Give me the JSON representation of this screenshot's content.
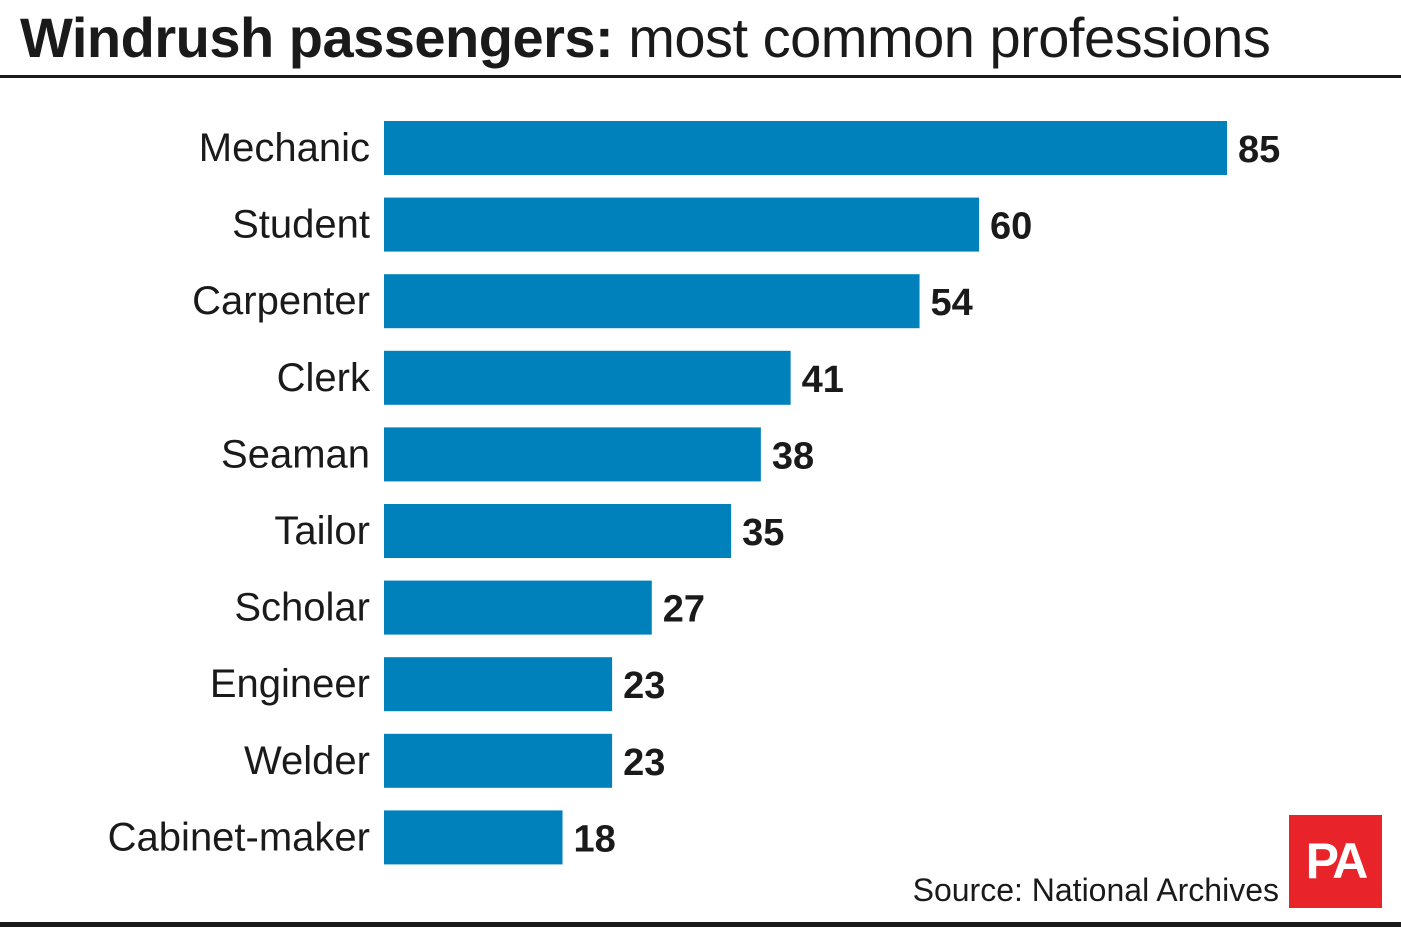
{
  "header": {
    "title_bold": "Windrush passengers:",
    "title_rest": "most common professions"
  },
  "footer": {
    "source": "Source: National Archives",
    "logo_text": "PA"
  },
  "colors": {
    "bar": "#0081bc",
    "logo": "#e8232a",
    "text": "#1a1a1a"
  },
  "chart_data": {
    "type": "bar",
    "orientation": "horizontal",
    "title": "Windrush passengers: most common professions",
    "categories": [
      "Mechanic",
      "Student",
      "Carpenter",
      "Clerk",
      "Seaman",
      "Tailor",
      "Scholar",
      "Engineer",
      "Welder",
      "Cabinet-maker"
    ],
    "values": [
      85,
      60,
      54,
      41,
      38,
      35,
      27,
      23,
      23,
      18
    ],
    "xlim": [
      0,
      85
    ],
    "grid": false,
    "legend": "none",
    "data_labels": true
  }
}
